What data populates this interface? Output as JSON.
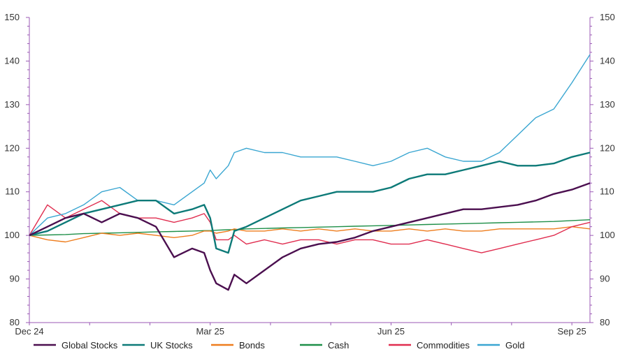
{
  "chart_data": {
    "type": "line",
    "title": "",
    "xlabel": "",
    "ylabel": "",
    "ylim": [
      80,
      150
    ],
    "y_ticks": [
      "80",
      "90",
      "100",
      "110",
      "120",
      "130",
      "140",
      "150"
    ],
    "x_tick_labels": [
      "Dec 24",
      "Mar 25",
      "Jun 25",
      "Sep 25"
    ],
    "x_tick_positions": [
      0,
      30,
      60,
      90
    ],
    "x_range": [
      0,
      93
    ],
    "legend_position": "bottom",
    "x": [
      0,
      3,
      6,
      9,
      12,
      15,
      18,
      21,
      24,
      27,
      29,
      30,
      31,
      33,
      34,
      36,
      39,
      42,
      45,
      48,
      51,
      54,
      57,
      60,
      63,
      66,
      69,
      72,
      75,
      78,
      81,
      84,
      87,
      90,
      93
    ],
    "series": [
      {
        "name": "Global Stocks",
        "color": "#4b0f4f",
        "values": [
          100,
          102,
          104,
          105,
          103,
          105,
          104,
          102,
          95,
          97,
          96,
          92,
          89,
          87.5,
          91,
          89,
          92,
          95,
          97,
          98,
          98.5,
          99.5,
          101,
          102,
          103,
          104,
          105,
          106,
          106,
          106.5,
          107,
          108,
          109.5,
          110.5,
          112
        ]
      },
      {
        "name": "UK Stocks",
        "color": "#0d7a78",
        "values": [
          100,
          101,
          103,
          105,
          106,
          107,
          108,
          108,
          105,
          106,
          107,
          104,
          97,
          96,
          101,
          102,
          104,
          106,
          108,
          109,
          110,
          110,
          110,
          111,
          113,
          114,
          114,
          115,
          116,
          117,
          116,
          116,
          116.5,
          118,
          119
        ]
      },
      {
        "name": "Bonds",
        "color": "#ee7d1d",
        "values": [
          100,
          99,
          98.5,
          99.5,
          100.5,
          100,
          100.5,
          100,
          99.5,
          100,
          101,
          101,
          100.5,
          101,
          101.5,
          101,
          101,
          101.5,
          101,
          101.5,
          101,
          101.5,
          101,
          101,
          101.5,
          101,
          101.5,
          101,
          101,
          101.5,
          101.5,
          101.5,
          101.5,
          102,
          101.5
        ]
      },
      {
        "name": "Cash",
        "color": "#1e8f48",
        "values": [
          100,
          100.1,
          100.2,
          100.4,
          100.5,
          100.6,
          100.7,
          100.8,
          100.9,
          101.0,
          101.1,
          101.1,
          101.2,
          101.3,
          101.3,
          101.5,
          101.6,
          101.7,
          101.8,
          101.9,
          102.0,
          102.1,
          102.2,
          102.3,
          102.4,
          102.5,
          102.6,
          102.7,
          102.8,
          102.9,
          103.0,
          103.1,
          103.2,
          103.4,
          103.6
        ]
      },
      {
        "name": "Commodities",
        "color": "#e02d4f",
        "values": [
          100,
          107,
          104,
          106,
          108,
          105,
          104,
          104,
          103,
          104,
          105,
          103,
          99,
          99,
          100,
          98,
          99,
          98,
          99,
          99,
          98,
          99,
          99,
          98,
          98,
          99,
          98,
          97,
          96,
          97,
          98,
          99,
          100,
          102,
          103
        ]
      },
      {
        "name": "Gold",
        "color": "#3aa6d1",
        "values": [
          100,
          104,
          105,
          107,
          110,
          111,
          108,
          108,
          107,
          110,
          112,
          115,
          113,
          116,
          119,
          120,
          119,
          119,
          118,
          118,
          118,
          117,
          116,
          117,
          119,
          120,
          118,
          117,
          117,
          119,
          123,
          127,
          129,
          135,
          141.5
        ]
      }
    ]
  }
}
